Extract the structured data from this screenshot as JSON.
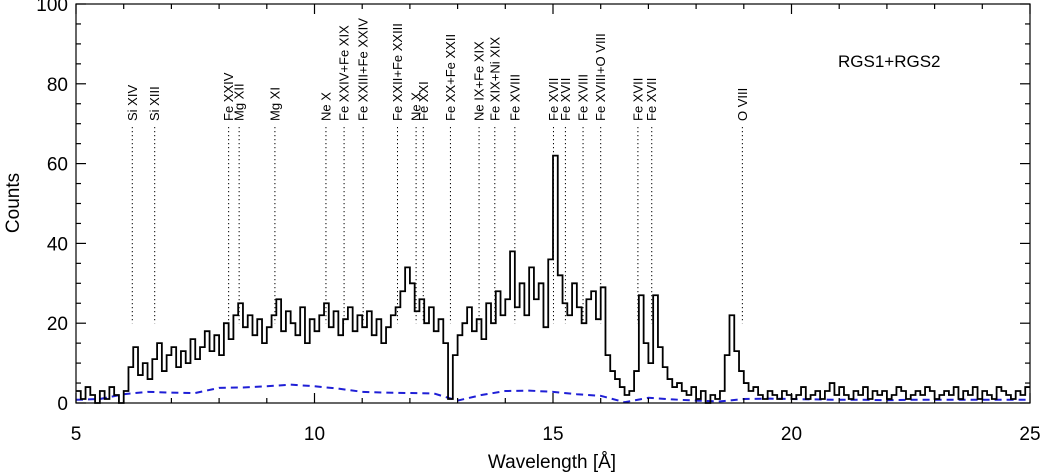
{
  "chart_data": {
    "type": "line",
    "title": "",
    "xlabel": "Wavelength [Å]",
    "ylabel": "Counts",
    "xlim": [
      5,
      25
    ],
    "ylim": [
      0,
      100
    ],
    "xticks": [
      5,
      10,
      15,
      20,
      25
    ],
    "yticks": [
      0,
      20,
      40,
      60,
      80,
      100
    ],
    "grid": false,
    "legend": {
      "text": "RGS1+RGS2",
      "position": "top-right"
    },
    "colors": {
      "data": "#000000",
      "background_model": "#1f1fd6",
      "markers": "#000000"
    },
    "series": [
      {
        "name": "",
        "style": "histogram",
        "x": [
          5.0,
          5.1,
          5.2,
          5.3,
          5.4,
          5.5,
          5.6,
          5.7,
          5.8,
          5.9,
          6.0,
          6.1,
          6.2,
          6.3,
          6.4,
          6.5,
          6.6,
          6.7,
          6.8,
          6.9,
          7.0,
          7.1,
          7.2,
          7.3,
          7.4,
          7.5,
          7.6,
          7.7,
          7.8,
          7.9,
          8.0,
          8.1,
          8.2,
          8.3,
          8.4,
          8.5,
          8.6,
          8.7,
          8.8,
          8.9,
          9.0,
          9.1,
          9.2,
          9.3,
          9.4,
          9.5,
          9.6,
          9.7,
          9.8,
          9.9,
          10.0,
          10.1,
          10.2,
          10.3,
          10.4,
          10.5,
          10.6,
          10.7,
          10.8,
          10.9,
          11.0,
          11.1,
          11.2,
          11.3,
          11.4,
          11.5,
          11.6,
          11.7,
          11.8,
          11.9,
          12.0,
          12.1,
          12.2,
          12.3,
          12.4,
          12.5,
          12.6,
          12.7,
          12.8,
          12.9,
          13.0,
          13.1,
          13.2,
          13.3,
          13.4,
          13.5,
          13.6,
          13.7,
          13.8,
          13.9,
          14.0,
          14.1,
          14.2,
          14.3,
          14.4,
          14.5,
          14.6,
          14.7,
          14.8,
          14.9,
          15.0,
          15.1,
          15.2,
          15.3,
          15.4,
          15.5,
          15.6,
          15.7,
          15.8,
          15.9,
          16.0,
          16.1,
          16.2,
          16.3,
          16.4,
          16.5,
          16.6,
          16.7,
          16.8,
          16.9,
          17.0,
          17.1,
          17.2,
          17.3,
          17.4,
          17.5,
          17.6,
          17.7,
          17.8,
          17.9,
          18.0,
          18.1,
          18.2,
          18.3,
          18.4,
          18.5,
          18.6,
          18.7,
          18.8,
          18.9,
          19.0,
          19.1,
          19.2,
          19.3,
          19.4,
          19.5,
          19.6,
          19.7,
          19.8,
          19.9,
          20.0,
          20.1,
          20.2,
          20.3,
          20.4,
          20.5,
          20.6,
          20.7,
          20.8,
          20.9,
          21.0,
          21.1,
          21.2,
          21.3,
          21.4,
          21.5,
          21.6,
          21.7,
          21.8,
          21.9,
          22.0,
          22.1,
          22.2,
          22.3,
          22.4,
          22.5,
          22.6,
          22.7,
          22.8,
          22.9,
          23.0,
          23.1,
          23.2,
          23.3,
          23.4,
          23.5,
          23.6,
          23.7,
          23.8,
          23.9,
          24.0,
          24.1,
          24.2,
          24.3,
          24.4,
          24.5,
          24.6,
          24.7,
          24.8,
          24.9
        ],
        "values": [
          3,
          1,
          4,
          2,
          0,
          3,
          1,
          4,
          2,
          0,
          3,
          9,
          14,
          7,
          10,
          6,
          11,
          15,
          8,
          12,
          14,
          9,
          13,
          10,
          16,
          11,
          14,
          18,
          13,
          17,
          12,
          20,
          16,
          22,
          25,
          19,
          22,
          17,
          21,
          15,
          19,
          22,
          26,
          18,
          23,
          20,
          17,
          24,
          15,
          21,
          18,
          22,
          25,
          19,
          23,
          17,
          21,
          24,
          18,
          22,
          19,
          23,
          17,
          21,
          15,
          19,
          22,
          24,
          28,
          34,
          30,
          23,
          26,
          20,
          24,
          18,
          21,
          15,
          1,
          12,
          17,
          20,
          24,
          18,
          21,
          16,
          25,
          20,
          28,
          22,
          26,
          38,
          24,
          30,
          22,
          34,
          26,
          30,
          19,
          36,
          62,
          32,
          25,
          22,
          30,
          24,
          20,
          26,
          28,
          21,
          29,
          12,
          8,
          6,
          4,
          2,
          3,
          8,
          27,
          15,
          10,
          27,
          14,
          9,
          6,
          4,
          5,
          3,
          2,
          4,
          1,
          3,
          0,
          2,
          1,
          3,
          12,
          22,
          13,
          8,
          5,
          3,
          4,
          2,
          1,
          3,
          2,
          1,
          3,
          2,
          1,
          2,
          4,
          1,
          2,
          3,
          1,
          3,
          5,
          2,
          4,
          2,
          1,
          3,
          2,
          4,
          1,
          3,
          2,
          3,
          1,
          2,
          4,
          3,
          1,
          2,
          3,
          2,
          4,
          3,
          1,
          2,
          3,
          2,
          4,
          1,
          3,
          2,
          4,
          1,
          3,
          2,
          1,
          4,
          3,
          2,
          1,
          3,
          2,
          4
        ]
      },
      {
        "name": "",
        "style": "dashed",
        "x": [
          5,
          5.5,
          6,
          6.5,
          7,
          7.5,
          8,
          8.5,
          9,
          9.5,
          10,
          10.5,
          11,
          11.5,
          12,
          12.5,
          13,
          13.5,
          14,
          14.5,
          15,
          15.5,
          16,
          16.5,
          17,
          17.5,
          18,
          18.5,
          19,
          19.5,
          20,
          20.5,
          21,
          21.5,
          22,
          22.5,
          23,
          23.5,
          24,
          24.5,
          25
        ],
        "values": [
          0.8,
          1.0,
          2.2,
          2.8,
          2.6,
          2.5,
          3.8,
          3.9,
          4.2,
          4.6,
          4.2,
          3.6,
          2.8,
          2.6,
          2.5,
          2.4,
          0.6,
          2.0,
          3.0,
          3.1,
          2.8,
          2.2,
          1.8,
          0.2,
          1.3,
          0.9,
          0.6,
          0.4,
          1.0,
          1.1,
          1.0,
          0.9,
          0.8,
          0.8,
          0.7,
          0.8,
          0.8,
          0.8,
          0.8,
          0.8,
          0.8
        ]
      }
    ],
    "line_markers": [
      {
        "label": "Si XIV",
        "x": 6.18
      },
      {
        "label": "Si XIII",
        "x": 6.65
      },
      {
        "label": "Fe XXIV",
        "x": 8.2
      },
      {
        "label": "Mg XII",
        "x": 8.42
      },
      {
        "label": "Mg XI",
        "x": 9.17
      },
      {
        "label": "Ne X",
        "x": 10.24
      },
      {
        "label": "Fe XXIV+Fe XIX",
        "x": 10.62
      },
      {
        "label": "Fe XXIII+Fe XXIV",
        "x": 11.02
      },
      {
        "label": "Fe XXII+Fe XXIII",
        "x": 11.74
      },
      {
        "label": "Ne X",
        "x": 12.13
      },
      {
        "label": "Fe XXI",
        "x": 12.28
      },
      {
        "label": "Fe XX+Fe XXII",
        "x": 12.85
      },
      {
        "label": "Ne IX+Fe XIX",
        "x": 13.45
      },
      {
        "label": "Fe XIX+Ni XIX",
        "x": 13.78
      },
      {
        "label": "Fe XVIII",
        "x": 14.2
      },
      {
        "label": "Fe XVII",
        "x": 15.01
      },
      {
        "label": "Fe XVII",
        "x": 15.26
      },
      {
        "label": "Fe XVIII",
        "x": 15.63
      },
      {
        "label": "Fe XVIII+O VIII",
        "x": 16.0
      },
      {
        "label": "Fe XVII",
        "x": 16.78
      },
      {
        "label": "Fe XVII",
        "x": 17.07
      },
      {
        "label": "O VIII",
        "x": 18.97
      }
    ],
    "marker_line_bottom": 20
  }
}
